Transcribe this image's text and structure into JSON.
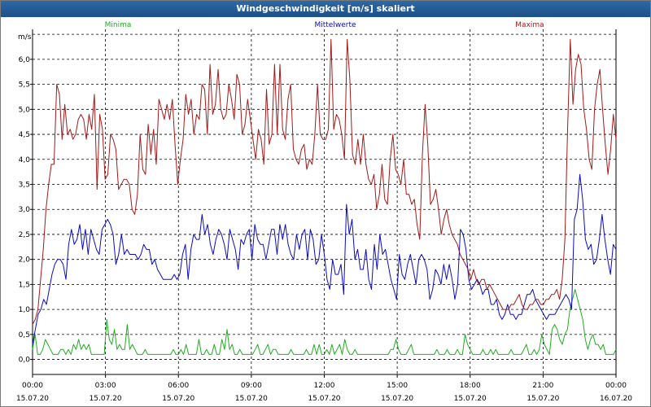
{
  "window": {
    "title": "Windgeschwindigkeit [m/s] skaliert"
  },
  "chart_data": {
    "type": "line",
    "title": "Windgeschwindigkeit [m/s] skaliert",
    "ylabel": "m/s",
    "ylim": [
      -0.3,
      6.6
    ],
    "yticks": [
      "0,0",
      "0,5",
      "1,0",
      "1,5",
      "2,0",
      "2,5",
      "3,0",
      "3,5",
      "4,0",
      "4,5",
      "5,0",
      "5,5",
      "6,0"
    ],
    "xlim": [
      0,
      24
    ],
    "xticks": [
      {
        "time": "00:00",
        "date": "15.07.20"
      },
      {
        "time": "03:00",
        "date": "15.07.20"
      },
      {
        "time": "06:00",
        "date": "15.07.20"
      },
      {
        "time": "09:00",
        "date": "15.07.20"
      },
      {
        "time": "12:00",
        "date": "15.07.20"
      },
      {
        "time": "15:00",
        "date": "15.07.20"
      },
      {
        "time": "18:00",
        "date": "15.07.20"
      },
      {
        "time": "21:00",
        "date": "15.07.20"
      },
      {
        "time": "00:00",
        "date": "16.07.20"
      }
    ],
    "grid": true,
    "legend_position": "top",
    "series": [
      {
        "name": "Minima",
        "color": "#1fae1f",
        "values": [
          0.2,
          0.5,
          0.1,
          0.1,
          0.2,
          0.4,
          0.3,
          0.2,
          0.1,
          0.1,
          0.1,
          0.2,
          0.2,
          0.1,
          0.2,
          0.1,
          0.3,
          0.2,
          0.4,
          0.2,
          0.3,
          0.2,
          0.3,
          0.1,
          0.1,
          0.1,
          0.1,
          0.1,
          0.1,
          0.8,
          0.4,
          0.3,
          0.6,
          0.2,
          0.3,
          0.2,
          0.2,
          0.7,
          0.2,
          0.3,
          0.2,
          0.1,
          0.1,
          0.1,
          0.2,
          0.1,
          0.1,
          0.1,
          0.1,
          0.1,
          0.1,
          0.1,
          0.1,
          0.1,
          0.1,
          0.2,
          0.1,
          0.1,
          0.2,
          0.1,
          0.3,
          0.1,
          0.1,
          0.1,
          0.1,
          0.4,
          0.1,
          0.1,
          0.2,
          0.1,
          0.1,
          0.3,
          0.1,
          0.1,
          0.4,
          0.2,
          0.6,
          0.2,
          0.3,
          0.1,
          0.1,
          0.2,
          0.1,
          0.1,
          0.1,
          0.1,
          0.1,
          0.2,
          0.3,
          0.1,
          0.1,
          0.2,
          0.3,
          0.1,
          0.2,
          0.2,
          0.1,
          0.1,
          0.1,
          0.1,
          0.1,
          0.2,
          0.1,
          0.1,
          0.1,
          0.1,
          0.1,
          0.2,
          0.1,
          0.1,
          0.3,
          0.1,
          0.3,
          0.1,
          0.1,
          0.2,
          0.1,
          0.3,
          0.1,
          0.2,
          0.3,
          0.1,
          0.4,
          0.2,
          0.1,
          0.1,
          0.2,
          0.1,
          0.1,
          0.1,
          0.1,
          0.1,
          0.1,
          0.1,
          0.1,
          0.1,
          0.1,
          0.1,
          0.1,
          0.1,
          0.2,
          0.2,
          0.4,
          0.2,
          0.1,
          0.1,
          0.1,
          0.2,
          0.3,
          0.1,
          0.1,
          0.1,
          0.1,
          0.1,
          0.1,
          0.1,
          0.1,
          0.1,
          0.2,
          0.1,
          0.1,
          0.1,
          0.2,
          0.1,
          0.1,
          0.1,
          0.2,
          0.1,
          0.1,
          0.5,
          0.3,
          0.2,
          0.1,
          0.1,
          0.1,
          0.1,
          0.2,
          0.1,
          0.1,
          0.2,
          0.1,
          0.2,
          0.1,
          0.1,
          0.1,
          0.1,
          0.1,
          0.2,
          0.1,
          0.1,
          0.1,
          0.1,
          0.2,
          0.3,
          0.1,
          0.1,
          0.2,
          0.1,
          0.2,
          0.5,
          0.3,
          0.2,
          0.1,
          0.6,
          0.7,
          0.6,
          0.4,
          0.3,
          0.5,
          0.6,
          1.0,
          1.2,
          1.4,
          1.2,
          1.0,
          0.8,
          0.4,
          0.2,
          0.4,
          0.5,
          0.3,
          0.3,
          0.2,
          0.3,
          0.1,
          0.1,
          0.1,
          0.1,
          0.2
        ]
      },
      {
        "name": "Mittelwerte",
        "color": "#0b0bbf",
        "values": [
          0.3,
          0.6,
          0.9,
          1.0,
          1.2,
          1.1,
          1.4,
          1.7,
          1.9,
          2.0,
          2.0,
          1.9,
          1.6,
          2.3,
          2.6,
          2.3,
          2.4,
          2.7,
          2.2,
          2.6,
          2.1,
          2.6,
          2.4,
          2.2,
          2.1,
          2.6,
          2.7,
          2.8,
          2.7,
          2.5,
          1.9,
          2.1,
          2.5,
          2.1,
          2.2,
          2.1,
          2.1,
          2.1,
          2.0,
          2.1,
          2.3,
          2.2,
          2.2,
          1.9,
          2.0,
          1.8,
          1.7,
          1.6,
          1.6,
          1.6,
          1.6,
          1.7,
          1.6,
          1.7,
          2.1,
          2.3,
          1.6,
          2.2,
          2.5,
          2.4,
          2.4,
          2.9,
          2.5,
          2.7,
          2.3,
          2.1,
          2.4,
          2.6,
          2.5,
          2.3,
          2.0,
          2.6,
          2.4,
          2.2,
          1.8,
          2.4,
          2.3,
          2.5,
          2.6,
          2.0,
          2.7,
          2.4,
          2.3,
          2.3,
          2.0,
          2.3,
          2.6,
          2.6,
          2.1,
          2.7,
          2.4,
          2.7,
          2.3,
          2.1,
          2.0,
          2.5,
          2.2,
          2.5,
          2.6,
          2.0,
          2.6,
          2.4,
          1.9,
          2.0,
          2.5,
          2.1,
          1.6,
          1.4,
          2.0,
          1.7,
          1.7,
          1.9,
          1.3,
          3.1,
          2.5,
          2.8,
          2.0,
          2.2,
          1.8,
          1.8,
          2.2,
          1.6,
          1.4,
          2.3,
          1.8,
          2.5,
          2.1,
          2.2,
          1.9,
          1.6,
          1.4,
          1.2,
          2.1,
          1.7,
          1.6,
          1.9,
          2.1,
          1.8,
          1.5,
          2.0,
          2.1,
          2.0,
          1.8,
          1.2,
          1.4,
          1.8,
          1.7,
          1.5,
          1.9,
          1.6,
          1.9,
          1.6,
          1.2,
          1.5,
          2.6,
          2.5,
          2.2,
          1.6,
          1.4,
          1.5,
          1.6,
          1.5,
          1.3,
          1.4,
          1.4,
          1.1,
          1.1,
          1.2,
          0.9,
          0.8,
          0.9,
          1.1,
          0.9,
          0.9,
          0.8,
          0.9,
          0.9,
          1.1,
          1.3,
          1.3,
          1.4,
          1.2,
          1.1,
          1.0,
          0.9,
          0.8,
          0.9,
          0.9,
          0.9,
          1.0,
          1.1,
          1.2,
          1.3,
          1.2,
          1.0,
          2.8,
          3.0,
          3.7,
          3.2,
          2.4,
          2.2,
          2.3,
          1.9,
          2.0,
          2.4,
          2.9,
          2.4,
          2.0,
          1.7,
          2.3,
          2.2
        ]
      },
      {
        "name": "Maxima",
        "color": "#a11a1a",
        "values": [
          0.7,
          0.8,
          1.0,
          1.6,
          2.2,
          3.0,
          3.5,
          3.9,
          3.9,
          5.5,
          5.3,
          4.4,
          5.1,
          4.5,
          4.6,
          4.4,
          4.5,
          4.8,
          4.9,
          4.8,
          4.4,
          4.9,
          4.6,
          5.3,
          3.4,
          4.9,
          4.6,
          3.6,
          3.7,
          4.5,
          4.4,
          4.2,
          3.4,
          3.5,
          3.6,
          3.6,
          3.5,
          3.0,
          2.9,
          3.3,
          4.5,
          3.8,
          3.7,
          4.7,
          4.1,
          4.6,
          3.9,
          5.2,
          5.0,
          4.8,
          5.1,
          4.8,
          5.2,
          4.3,
          3.5,
          4.0,
          4.4,
          5.3,
          4.9,
          5.2,
          4.5,
          4.9,
          4.8,
          5.5,
          5.4,
          4.5,
          5.9,
          4.9,
          5.1,
          5.8,
          5.0,
          4.8,
          4.9,
          5.5,
          5.2,
          4.8,
          5.7,
          5.5,
          4.5,
          4.7,
          5.2,
          4.8,
          4.4,
          4.0,
          4.6,
          4.4,
          3.9,
          5.4,
          4.3,
          4.5,
          5.9,
          4.5,
          5.9,
          4.6,
          4.4,
          5.2,
          5.5,
          4.2,
          4.0,
          3.9,
          4.2,
          4.3,
          3.8,
          4.0,
          3.9,
          4.5,
          5.5,
          4.5,
          4.4,
          4.4,
          4.6,
          6.4,
          4.6,
          4.9,
          4.8,
          4.5,
          4.0,
          6.4,
          5.6,
          4.1,
          3.9,
          4.4,
          3.9,
          4.5,
          3.9,
          3.6,
          3.5,
          3.7,
          3.0,
          3.3,
          3.9,
          3.2,
          3.1,
          4.0,
          4.5,
          3.8,
          3.7,
          3.5,
          4.0,
          3.3,
          3.3,
          3.1,
          3.2,
          2.7,
          2.4,
          4.1,
          5.1,
          4.3,
          3.1,
          3.2,
          3.4,
          3.0,
          2.5,
          2.8,
          3.0,
          2.7,
          2.5,
          2.4,
          2.3,
          2.1,
          2.0,
          1.9,
          1.8,
          1.6,
          1.8,
          1.6,
          1.5,
          1.6,
          1.6,
          1.4,
          1.5,
          1.4,
          1.3,
          1.2,
          1.1,
          1.0,
          1.0,
          1.0,
          1.1,
          1.1,
          1.2,
          1.3,
          1.1,
          1.0,
          1.0,
          1.1,
          1.1,
          1.2,
          1.2,
          1.1,
          1.1,
          1.2,
          1.2,
          1.3,
          1.3,
          1.4,
          1.2,
          1.6,
          2.4,
          4.6,
          6.4,
          5.1,
          5.8,
          6.1,
          5.9,
          5.0,
          4.6,
          4.0,
          3.8,
          5.0,
          5.5,
          5.8,
          5.0,
          4.3,
          3.7,
          4.2,
          4.9,
          4.4
        ]
      }
    ]
  }
}
